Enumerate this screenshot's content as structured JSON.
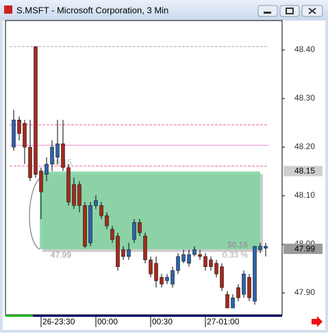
{
  "window": {
    "title": "S.MSFT - Microsoft Corporation, 3 Min"
  },
  "chart_data": {
    "type": "candlestick",
    "categories": [
      null,
      null,
      null,
      null,
      null,
      "26-23:30",
      null,
      null,
      null,
      null,
      null,
      null,
      null,
      null,
      null,
      "00:00",
      null,
      null,
      null,
      null,
      null,
      null,
      null,
      null,
      null,
      "00:30",
      null,
      null,
      null,
      null,
      null,
      null,
      null,
      null,
      null,
      "27-01:00",
      null,
      null,
      null,
      null,
      null,
      null,
      null,
      null,
      null,
      null,
      null
    ],
    "open": [
      48.2,
      48.256,
      48.249,
      48.2,
      48.407,
      48.151,
      48.144,
      48.165,
      48.179,
      48.207,
      48.158,
      48.123,
      48.123,
      48.08,
      48.003,
      48.08,
      48.08,
      48.059,
      48.031,
      48.017,
      47.989,
      47.975,
      48.01,
      48.045,
      48.017,
      47.968,
      47.961,
      47.932,
      47.925,
      47.918,
      47.946,
      47.965,
      47.961,
      47.979,
      47.979,
      47.975,
      47.968,
      47.961,
      47.954,
      47.897,
      47.869,
      47.911,
      47.897,
      47.932,
      47.883,
      47.989,
      47.992
    ],
    "high": [
      48.277,
      48.263,
      48.256,
      48.256,
      48.407,
      48.158,
      48.179,
      48.214,
      48.256,
      48.256,
      48.165,
      48.137,
      48.13,
      48.087,
      48.087,
      48.101,
      48.087,
      48.066,
      48.038,
      48.024,
      47.996,
      48.003,
      48.052,
      48.052,
      48.024,
      47.975,
      47.975,
      47.939,
      47.939,
      47.954,
      47.982,
      47.989,
      47.989,
      47.996,
      47.989,
      47.982,
      47.975,
      47.968,
      47.961,
      47.904,
      47.897,
      47.918,
      47.946,
      47.939,
      47.996,
      48.003,
      48.003
    ],
    "low": [
      48.193,
      48.214,
      48.165,
      48.13,
      48.137,
      48.052,
      48.13,
      48.151,
      48.165,
      48.151,
      48.08,
      48.073,
      48.066,
      47.992,
      47.996,
      48.073,
      48.052,
      48.031,
      48.003,
      47.946,
      47.968,
      47.968,
      48.003,
      48.017,
      47.961,
      47.932,
      47.911,
      47.911,
      47.918,
      47.911,
      47.939,
      47.961,
      47.954,
      47.975,
      47.968,
      47.946,
      47.946,
      47.932,
      47.904,
      47.869,
      47.869,
      47.883,
      47.89,
      47.883,
      47.876,
      47.982,
      47.975
    ],
    "close": [
      48.256,
      48.228,
      48.2,
      48.137,
      48.144,
      48.108,
      48.165,
      48.2,
      48.207,
      48.158,
      48.087,
      48.08,
      48.08,
      47.996,
      48.08,
      48.09,
      48.059,
      48.038,
      48.01,
      47.954,
      47.975,
      47.989,
      48.045,
      48.024,
      47.968,
      47.939,
      47.925,
      47.918,
      47.932,
      47.946,
      47.975,
      47.979,
      47.979,
      47.989,
      47.975,
      47.954,
      47.954,
      47.939,
      47.911,
      47.869,
      47.89,
      47.89,
      47.939,
      47.89,
      47.996,
      47.996,
      47.996
    ],
    "up_color": "#2f62a8",
    "down_color": "#a32a1e",
    "ylim": [
      47.855,
      48.4606
    ],
    "yticks": [
      {
        "value": 47.9,
        "label": "47.90"
      },
      {
        "value": 48,
        "label": "48.00"
      },
      {
        "value": 48.1,
        "label": "48.10"
      },
      {
        "value": 48.2,
        "label": "48.20"
      },
      {
        "value": 48.3,
        "label": "48.30"
      },
      {
        "value": 48.4,
        "label": "48.40"
      }
    ],
    "levels": [
      {
        "value": 48.407,
        "color": "#aaaaaa",
        "dashed": true
      },
      {
        "value": 48.246,
        "color": "#ee66aa",
        "dashed": true
      },
      {
        "value": 48.204,
        "color": "#ee88cc",
        "dashed": false
      },
      {
        "value": 48.161,
        "color": "#ee66aa",
        "dashed": true
      }
    ],
    "price_markers": [
      48.15,
      47.99
    ],
    "measure": {
      "start": 48.15,
      "end": 47.99,
      "change": "$0.16",
      "percent": "0.33 %",
      "color": "#7fd3a0"
    }
  }
}
